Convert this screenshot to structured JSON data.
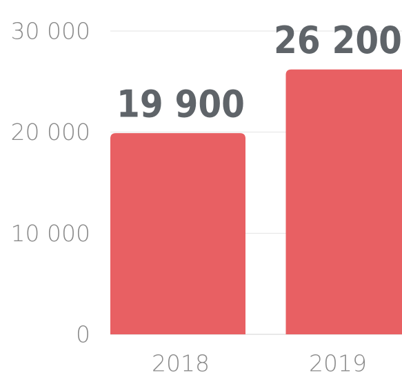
{
  "chart_data": {
    "type": "bar",
    "categories": [
      "2018",
      "2019"
    ],
    "values": [
      19900,
      26200
    ],
    "data_labels": [
      "19 900",
      "26 200"
    ],
    "y_ticks": [
      0,
      10000,
      20000,
      30000
    ],
    "y_tick_labels": [
      "0",
      "10 000",
      "20 000",
      "30 000"
    ],
    "ylim": [
      0,
      30000
    ],
    "title": "",
    "xlabel": "",
    "ylabel": "",
    "grid": true,
    "legend": "none",
    "bar_color": "#e86063",
    "grid_color": "#e3e3e3",
    "tick_color": "#8a8a8a",
    "label_color": "#5f6469"
  }
}
